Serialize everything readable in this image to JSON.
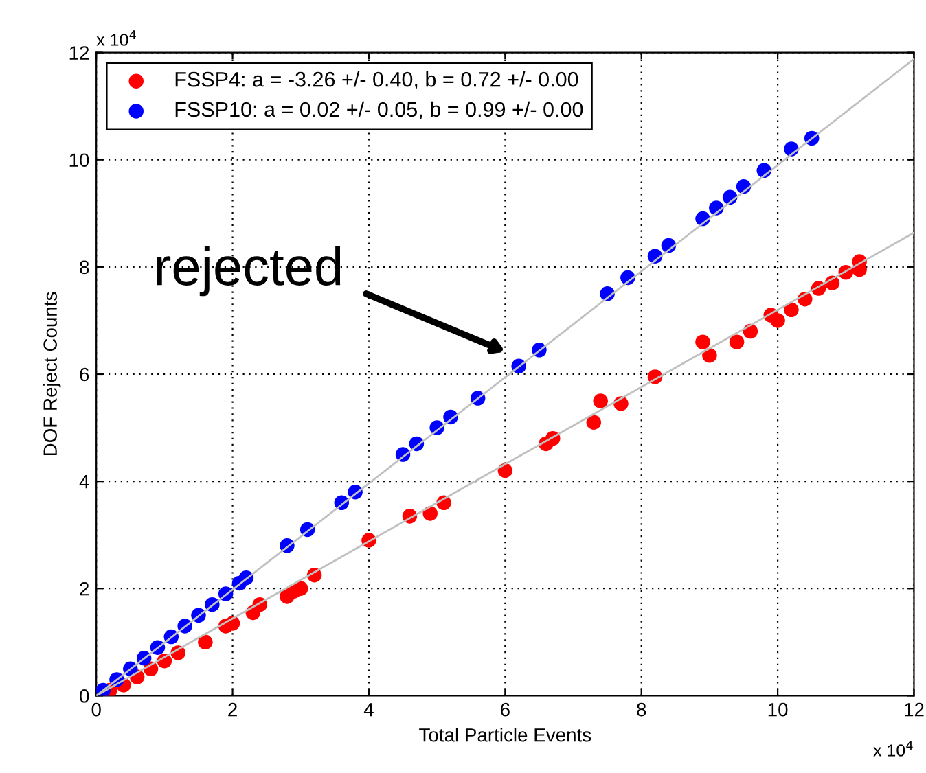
{
  "chart_data": {
    "type": "scatter",
    "xlabel": "Total Particle Events",
    "ylabel": "DOF Reject Counts",
    "xlim": [
      0,
      12
    ],
    "ylim": [
      0,
      12
    ],
    "xticks": [
      0,
      2,
      4,
      6,
      8,
      10,
      12
    ],
    "yticks": [
      0,
      2,
      4,
      6,
      8,
      10,
      12
    ],
    "grid": true,
    "legend": "top left",
    "marker": "circle",
    "annotations": [
      "x 10$^{4}$",
      "x 10$^{4}$",
      "rejected"
    ],
    "series": [
      {
        "name": "FSSP4: a = -3.26 +/- 0.40, b = 0.72 +/- 0.00",
        "color": "#ff0000",
        "x": [
          0.2,
          0.4,
          0.6,
          0.8,
          1.0,
          1.2,
          1.6,
          1.9,
          2.0,
          2.3,
          2.4,
          2.8,
          2.9,
          3.0,
          3.2,
          4.0,
          4.6,
          4.9,
          5.1,
          6.0,
          6.6,
          6.7,
          7.3,
          7.4,
          7.7,
          8.2,
          8.9,
          9.0,
          9.4,
          9.6,
          9.9,
          10.0,
          10.2,
          10.4,
          10.6,
          10.8,
          11.0,
          11.2,
          11.2
        ],
        "values": [
          0.1,
          0.2,
          0.35,
          0.5,
          0.65,
          0.8,
          1.0,
          1.3,
          1.35,
          1.55,
          1.7,
          1.85,
          1.95,
          2.0,
          2.25,
          2.9,
          3.35,
          3.4,
          3.6,
          4.2,
          4.7,
          4.8,
          5.1,
          5.5,
          5.45,
          5.95,
          6.6,
          6.35,
          6.6,
          6.8,
          7.1,
          7.0,
          7.2,
          7.4,
          7.6,
          7.7,
          7.9,
          8.1,
          7.95
        ]
      },
      {
        "name": "FSSP10: a = 0.02 +/- 0.05, b = 0.99 +/- 0.00",
        "color": "#0000ff",
        "x": [
          0.1,
          0.3,
          0.5,
          0.7,
          0.9,
          1.1,
          1.3,
          1.5,
          1.7,
          1.9,
          2.1,
          2.2,
          2.8,
          3.1,
          3.6,
          3.8,
          4.5,
          4.7,
          5.0,
          5.2,
          5.6,
          6.2,
          6.5,
          7.5,
          7.8,
          8.2,
          8.4,
          8.9,
          9.1,
          9.3,
          9.5,
          9.8,
          10.2,
          10.5
        ],
        "values": [
          0.1,
          0.3,
          0.5,
          0.7,
          0.9,
          1.1,
          1.3,
          1.5,
          1.7,
          1.9,
          2.1,
          2.2,
          2.8,
          3.1,
          3.6,
          3.8,
          4.5,
          4.7,
          5.0,
          5.2,
          5.55,
          6.15,
          6.45,
          7.5,
          7.8,
          8.2,
          8.4,
          8.9,
          9.1,
          9.3,
          9.5,
          9.8,
          10.2,
          10.4
        ]
      },
      {
        "type": "line",
        "marker": "none",
        "color": "#c0c0c0",
        "x": [
          0,
          12
        ],
        "values": [
          0,
          8.64
        ]
      },
      {
        "type": "line",
        "marker": "none",
        "color": "#c0c0c0",
        "x": [
          0,
          12
        ],
        "values": [
          0,
          11.88
        ]
      }
    ]
  }
}
